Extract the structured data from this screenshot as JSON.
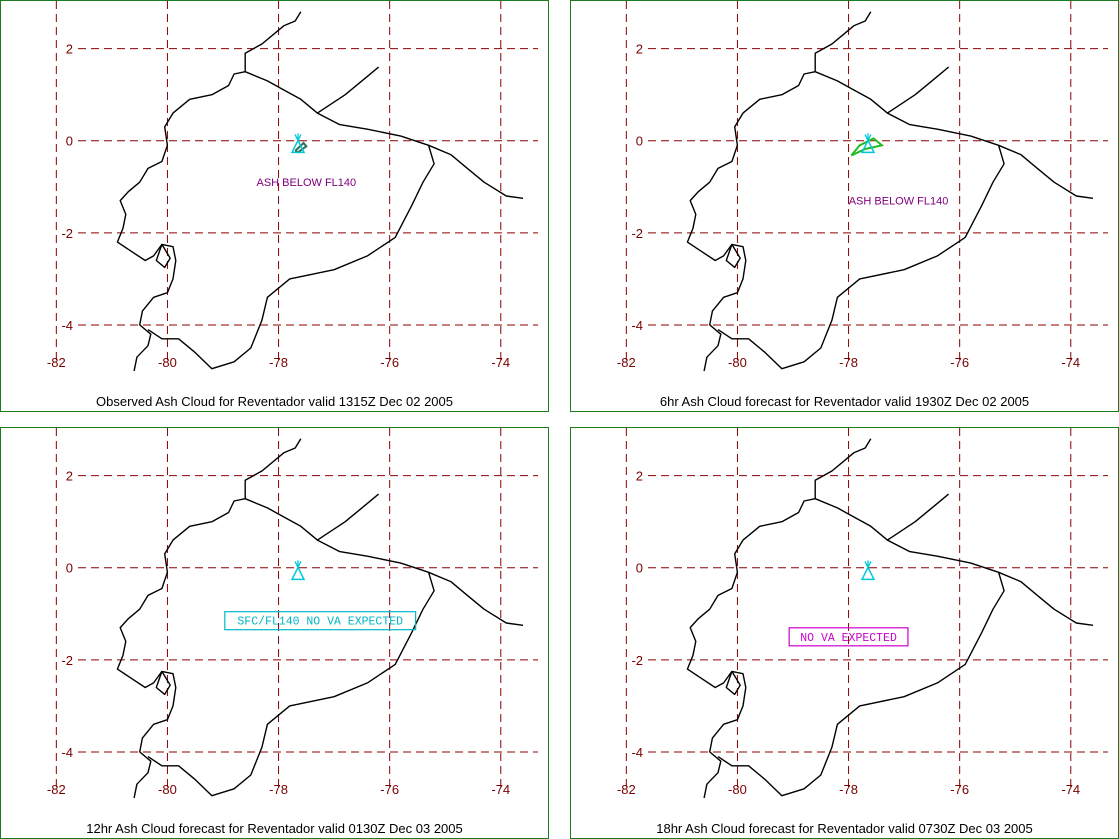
{
  "panels": [
    {
      "caption": "Observed Ash Cloud for Reventador valid 1315Z Dec 02 2005",
      "annotation": {
        "text": "ASH BELOW FL140",
        "style": "plain",
        "color": "#800080",
        "lon": -77.5,
        "lat": -0.9
      },
      "ash_plume": {
        "present": true,
        "color": "#2f6f4f",
        "points": [
          [
            -77.7,
            -0.22
          ],
          [
            -77.55,
            -0.05
          ],
          [
            -77.5,
            -0.12
          ],
          [
            -77.65,
            -0.25
          ]
        ]
      }
    },
    {
      "caption": "6hr Ash Cloud forecast for Reventador valid 1930Z Dec 02 2005",
      "annotation": {
        "text": "ASH BELOW FL140",
        "style": "plain",
        "color": "#800080",
        "lon": -77.1,
        "lat": -1.3
      },
      "ash_plume": {
        "present": true,
        "color": "#22bb22",
        "points": [
          [
            -77.95,
            -0.32
          ],
          [
            -77.7,
            -0.18
          ],
          [
            -77.4,
            -0.1
          ],
          [
            -77.55,
            0.05
          ],
          [
            -77.8,
            -0.1
          ]
        ]
      }
    },
    {
      "caption": "12hr Ash Cloud forecast for Reventador valid 0130Z Dec 03 2005",
      "annotation": {
        "text": "SFC/FL140 NO VA EXPECTED",
        "style": "boxed",
        "color": "#00b8c8",
        "lon": -77.25,
        "lat": -1.15
      },
      "ash_plume": {
        "present": false
      }
    },
    {
      "caption": "18hr Ash Cloud forecast for Reventador valid 0730Z Dec 03 2005",
      "annotation": {
        "text": "NO VA EXPECTED",
        "style": "boxed",
        "color": "#cc00cc",
        "lon": -78.0,
        "lat": -1.5
      },
      "ash_plume": {
        "present": false
      }
    }
  ],
  "axes": {
    "x_ticks": [
      "-82",
      "-80",
      "-78",
      "-76",
      "-74"
    ],
    "x_tick_values": [
      -82,
      -80,
      -78,
      -76,
      -74
    ],
    "y_ticks": [
      "2",
      "0",
      "-2",
      "-4"
    ],
    "y_tick_values": [
      2,
      0,
      -2,
      -4
    ],
    "lon_range": [
      -82.6,
      -73.6
    ],
    "lat_range": [
      -5.0,
      2.6
    ],
    "grid": true,
    "grid_color": "#8b0000",
    "tick_label_color": "#7a0000"
  },
  "volcano": {
    "name": "Reventador",
    "lon": -77.65,
    "lat": -0.08,
    "symbol_color": "#00c8d8"
  },
  "coastline_color": "#000000",
  "border_color": "#1e7a1e"
}
